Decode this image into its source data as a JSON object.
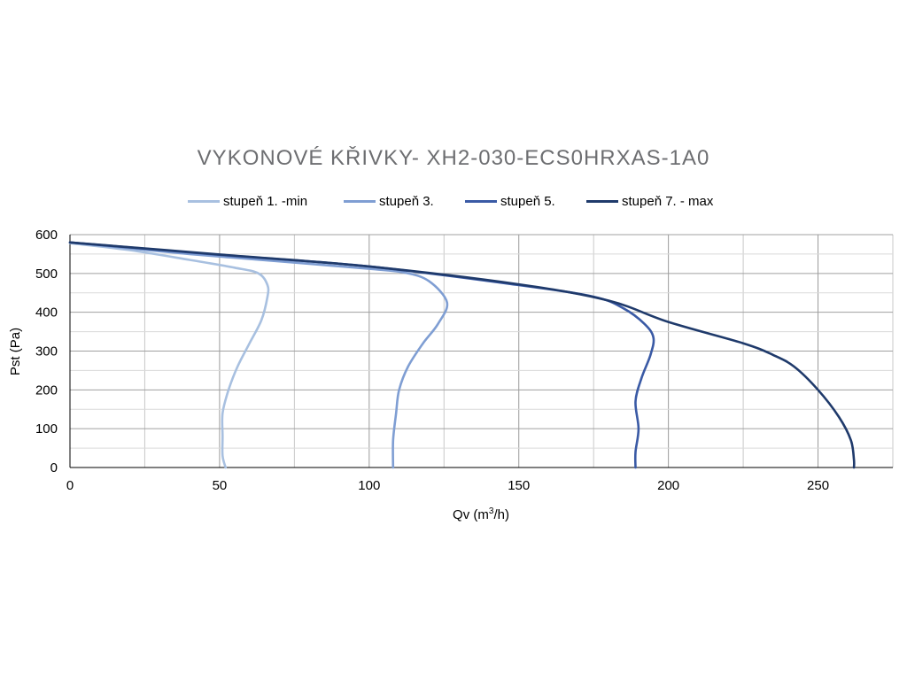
{
  "chart_data": {
    "type": "line",
    "title": "VYKONOVÉ KŘIVKY- XH2-030-ECS0HRXAS-1A0",
    "xlabel_main": "Qv (m",
    "xlabel_sup": "3",
    "xlabel_end": "/h)",
    "ylabel": "Pst (Pa)",
    "xlim": [
      0,
      275
    ],
    "ylim": [
      0,
      600
    ],
    "x_ticks": [
      0,
      50,
      100,
      150,
      200,
      250
    ],
    "y_ticks": [
      0,
      100,
      200,
      300,
      400,
      500,
      600
    ],
    "x_tick_labels": [
      "0",
      "50",
      "100",
      "150",
      "200",
      "250"
    ],
    "y_tick_labels": [
      "0",
      "100",
      "200",
      "300",
      "400",
      "500",
      "600"
    ],
    "grid": true,
    "legend_position": "top",
    "series": [
      {
        "name": "stupeň 1. -min",
        "color": "#a8c0e0",
        "points": [
          [
            0,
            578
          ],
          [
            20,
            560
          ],
          [
            40,
            535
          ],
          [
            55,
            515
          ],
          [
            63,
            500
          ],
          [
            66,
            470
          ],
          [
            66,
            440
          ],
          [
            64,
            380
          ],
          [
            60,
            320
          ],
          [
            56,
            260
          ],
          [
            53,
            200
          ],
          [
            51,
            140
          ],
          [
            51,
            80
          ],
          [
            51,
            30
          ],
          [
            52,
            0
          ]
        ]
      },
      {
        "name": "stupeň 3.",
        "color": "#7f9ed3",
        "points": [
          [
            0,
            580
          ],
          [
            40,
            550
          ],
          [
            80,
            525
          ],
          [
            100,
            512
          ],
          [
            112,
            502
          ],
          [
            120,
            480
          ],
          [
            126,
            425
          ],
          [
            123,
            370
          ],
          [
            118,
            320
          ],
          [
            113,
            260
          ],
          [
            110,
            200
          ],
          [
            109,
            140
          ],
          [
            108,
            70
          ],
          [
            108,
            0
          ]
        ]
      },
      {
        "name": "stupeň 5.",
        "color": "#3a5aa5",
        "points": [
          [
            0,
            580
          ],
          [
            50,
            548
          ],
          [
            100,
            518
          ],
          [
            150,
            470
          ],
          [
            175,
            440
          ],
          [
            185,
            410
          ],
          [
            192,
            370
          ],
          [
            195,
            335
          ],
          [
            194,
            290
          ],
          [
            191,
            230
          ],
          [
            189,
            170
          ],
          [
            190,
            100
          ],
          [
            189,
            40
          ],
          [
            189,
            0
          ]
        ]
      },
      {
        "name": "stupeň 7. - max",
        "color": "#1f3a6b",
        "points": [
          [
            0,
            580
          ],
          [
            50,
            549
          ],
          [
            100,
            518
          ],
          [
            150,
            472
          ],
          [
            180,
            430
          ],
          [
            200,
            375
          ],
          [
            225,
            320
          ],
          [
            235,
            290
          ],
          [
            242,
            260
          ],
          [
            250,
            200
          ],
          [
            257,
            130
          ],
          [
            261,
            70
          ],
          [
            262,
            20
          ],
          [
            262,
            0
          ]
        ]
      }
    ]
  }
}
